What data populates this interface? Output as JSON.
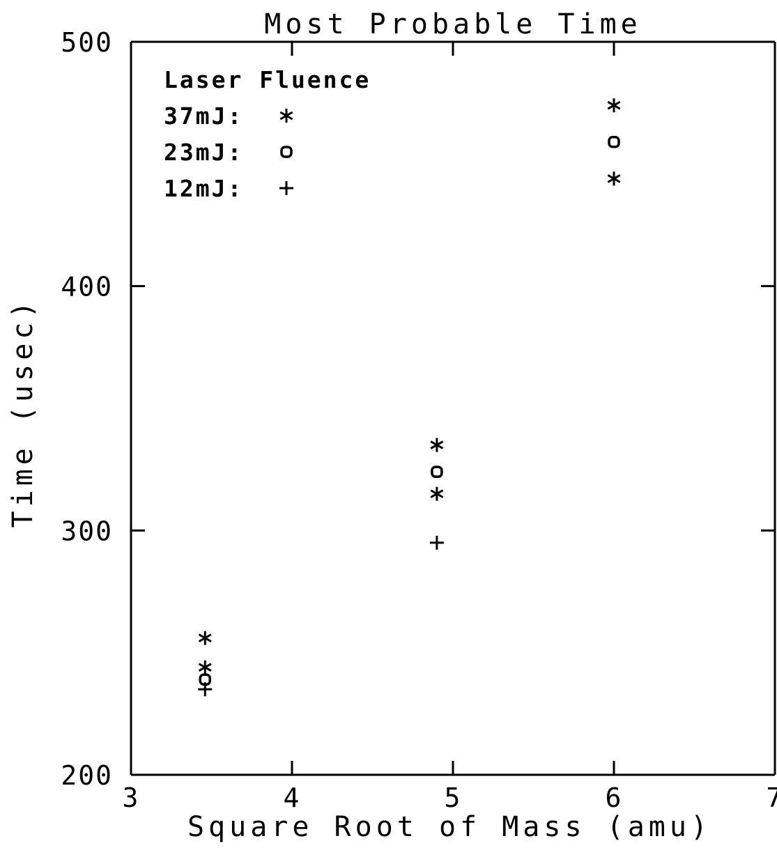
{
  "chart_data": {
    "type": "scatter",
    "title": "Most Probable Time",
    "xlabel": "Square Root of Mass (amu)",
    "ylabel": "Time (usec)",
    "xlim": [
      3,
      7
    ],
    "ylim": [
      200,
      500
    ],
    "x_ticks": [
      "3",
      "4",
      "5",
      "6",
      "7"
    ],
    "y_ticks": [
      "200",
      "300",
      "400",
      "500"
    ],
    "grid": false,
    "legend_title": "Laser Fluence",
    "legend_placement": "top-left",
    "series": [
      {
        "name": "37mJ",
        "legend_label": "37mJ:",
        "marker": "asterisk",
        "symbol": "*",
        "points": [
          {
            "x": 3.46,
            "y": 256
          },
          {
            "x": 3.46,
            "y": 244
          },
          {
            "x": 4.9,
            "y": 335
          },
          {
            "x": 4.9,
            "y": 315
          },
          {
            "x": 6.0,
            "y": 474
          },
          {
            "x": 6.0,
            "y": 444
          }
        ]
      },
      {
        "name": "23mJ",
        "legend_label": "23mJ:",
        "marker": "circle",
        "symbol": "o",
        "points": [
          {
            "x": 3.46,
            "y": 239
          },
          {
            "x": 4.9,
            "y": 324
          },
          {
            "x": 6.0,
            "y": 459
          }
        ]
      },
      {
        "name": "12mJ",
        "legend_label": "12mJ:",
        "marker": "plus",
        "symbol": "+",
        "points": [
          {
            "x": 3.46,
            "y": 235
          },
          {
            "x": 4.9,
            "y": 295
          }
        ]
      }
    ]
  }
}
